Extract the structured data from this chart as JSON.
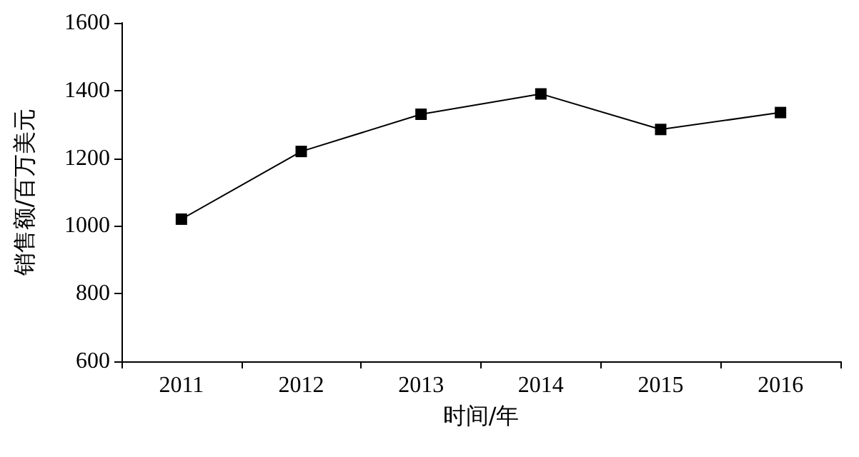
{
  "chart_data": {
    "type": "line",
    "xlabel": "时间/年",
    "ylabel": "销售额/百万美元",
    "categories": [
      "2011",
      "2012",
      "2013",
      "2014",
      "2015",
      "2016"
    ],
    "series": [
      {
        "color": "#000000",
        "values": [
          1020,
          1220,
          1330,
          1390,
          1285,
          1335
        ]
      }
    ],
    "ylim": [
      600,
      1600
    ],
    "yticks": [
      600,
      800,
      1000,
      1200,
      1400,
      1600
    ],
    "grid": false,
    "marker": "square",
    "line_style": "solid"
  }
}
